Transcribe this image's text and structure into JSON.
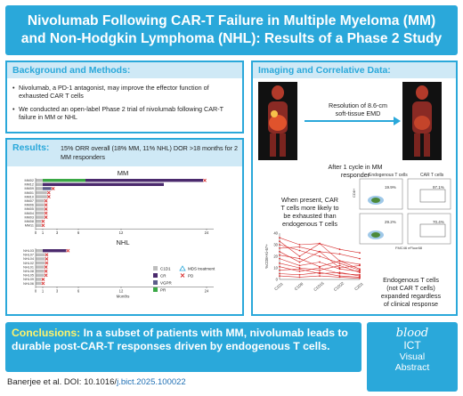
{
  "header": {
    "line1": "Nivolumab Following CAR-T Failure in Multiple Myeloma (MM)",
    "line2": "and Non-Hodgkin Lymphoma (NHL): Results of a Phase 2 Study"
  },
  "background": {
    "heading": "Background and Methods:",
    "bullets": [
      "Nivolumab, a PD-1 antagonist, may improve the effector function of exhausted CAR T cells",
      "We conducted an open-label Phase 2 trial of nivolumab following CAR-T failure in MM or NHL"
    ]
  },
  "results": {
    "heading": "Results:",
    "summary": "15% ORR overall (18% MM, 11% NHL) DOR >18 months for 2 MM responders",
    "mm_title": "MM",
    "nhl_title": "NHL",
    "x_label": "Months",
    "legend": {
      "c1d1": "C1D1",
      "cr": "CR",
      "vgpr": "VGPR",
      "pr": "PR",
      "mds": "MDS treatment",
      "pd": "PD"
    }
  },
  "colors": {
    "accent": "#2aa8da",
    "c1d1": "#bdbdbd",
    "cr": "#4b2a6d",
    "vgpr": "#5c5c8a",
    "pr": "#3aa845",
    "pd": "#d62b2b",
    "nhl_pd_line": "#d62b2b"
  },
  "chart_data": [
    {
      "type": "bar",
      "title": "MM",
      "xlabel": "Months",
      "xticks": [
        0,
        1,
        3,
        6,
        12,
        24
      ],
      "xlim": [
        0,
        25
      ],
      "patients": [
        {
          "id": "MM02",
          "c1d1": 1,
          "pr": 7,
          "cr": 23.5,
          "pd": true
        },
        {
          "id": "MM12",
          "c1d1": 1,
          "pr": 0,
          "vgpr": 0,
          "cr": 18,
          "ongoing": true
        },
        {
          "id": "MM09",
          "c1d1": 1,
          "vgpr": 2.2,
          "pd": true
        },
        {
          "id": "MM01",
          "c1d1": 1.6,
          "pd": true
        },
        {
          "id": "MM10",
          "c1d1": 1.6,
          "pd": true
        },
        {
          "id": "MM07",
          "c1d1": 1.2,
          "pd": true
        },
        {
          "id": "MM06",
          "c1d1": 1.2,
          "pd": true
        },
        {
          "id": "MM05",
          "c1d1": 1.2,
          "pd": true
        },
        {
          "id": "MM04",
          "c1d1": 1.2,
          "pd": true
        },
        {
          "id": "MM03",
          "c1d1": 1.2,
          "pd": true
        },
        {
          "id": "MM08",
          "c1d1": 0.8,
          "pd": true
        },
        {
          "id": "MM11",
          "c1d1": 0.8,
          "pd": true
        }
      ]
    },
    {
      "type": "bar",
      "title": "NHL",
      "xlabel": "Months",
      "xticks": [
        0,
        1,
        3,
        6,
        12,
        24
      ],
      "xlim": [
        0,
        25
      ],
      "patients": [
        {
          "id": "NHL03",
          "c1d1": 1,
          "cr": 4.3,
          "pd": true
        },
        {
          "id": "NHL07",
          "c1d1": 1.3,
          "pd": true
        },
        {
          "id": "NHL04",
          "c1d1": 1.3,
          "pd": true
        },
        {
          "id": "NHL02",
          "c1d1": 1.3,
          "pd": true
        },
        {
          "id": "NHL01",
          "c1d1": 1.2,
          "pd": true
        },
        {
          "id": "NHL08",
          "c1d1": 1.2,
          "pd": true
        },
        {
          "id": "NHL05",
          "c1d1": 1.2,
          "pd": true
        },
        {
          "id": "NHL09",
          "c1d1": 0.8,
          "pd": true
        },
        {
          "id": "NHL06",
          "c1d1": 0.8,
          "pd": true
        }
      ]
    },
    {
      "type": "line",
      "ylabel": "%CD8+Ki-67+",
      "categories": [
        "C1D1",
        "C1D8",
        "C1D15",
        "C1D22",
        "C2D1"
      ],
      "ylim": [
        0,
        40
      ],
      "yticks": [
        0,
        10,
        20,
        30,
        40
      ],
      "series": [
        {
          "values": [
            36,
            30,
            31,
            26,
            23
          ]
        },
        {
          "values": [
            33,
            20,
            31,
            16,
            13
          ]
        },
        {
          "values": [
            30,
            25,
            20,
            14,
            8
          ]
        },
        {
          "values": [
            27,
            28,
            24,
            22,
            18
          ]
        },
        {
          "values": [
            24,
            15,
            24,
            10,
            12
          ]
        },
        {
          "values": [
            21,
            18,
            11,
            16,
            9
          ]
        },
        {
          "values": [
            18,
            12,
            15,
            9,
            7
          ]
        },
        {
          "values": [
            14,
            10,
            8,
            12,
            6
          ]
        },
        {
          "values": [
            11,
            7,
            10,
            5,
            4
          ]
        },
        {
          "values": [
            8,
            9,
            5,
            6,
            3
          ]
        },
        {
          "values": [
            5,
            4,
            6,
            3,
            2
          ]
        },
        {
          "values": [
            3,
            2,
            3,
            2,
            1
          ]
        }
      ]
    }
  ],
  "imaging": {
    "heading": "Imaging and Correlative Data:",
    "note1": [
      "Resolution of 8.6-cm",
      "soft-tissue EMD"
    ],
    "note2": [
      "After 1 cycle in MM",
      "responder"
    ],
    "note3": [
      "When present, CAR",
      "T cells more likely to",
      "be exhausted than",
      "endogenous T cells"
    ],
    "flow_left": "Endogenous T cells",
    "flow_right": "CAR T cells",
    "flow_axis": "FMC46 eFluor68",
    "flow_y": "CD8+",
    "flow_values": [
      "19.9%",
      "97.1%",
      "29.2%",
      "70.4%"
    ],
    "note4": [
      "Endogenous T cells",
      "(not CAR T cells)",
      "expanded regardless",
      "of clinical response"
    ]
  },
  "conclusions": {
    "label": "Conclusions:",
    "text": "In a subset of patients with MM, nivolumab leads to durable post-CAR-T responses driven by endogenous T cells."
  },
  "logo": {
    "blood": "blood",
    "ict": "ICT",
    "visual": "Visual",
    "abstract": "Abstract"
  },
  "footer": {
    "prefix": "Banerjee et al. DOI: 10.1016/",
    "link": "j.bict.2025.100022"
  }
}
